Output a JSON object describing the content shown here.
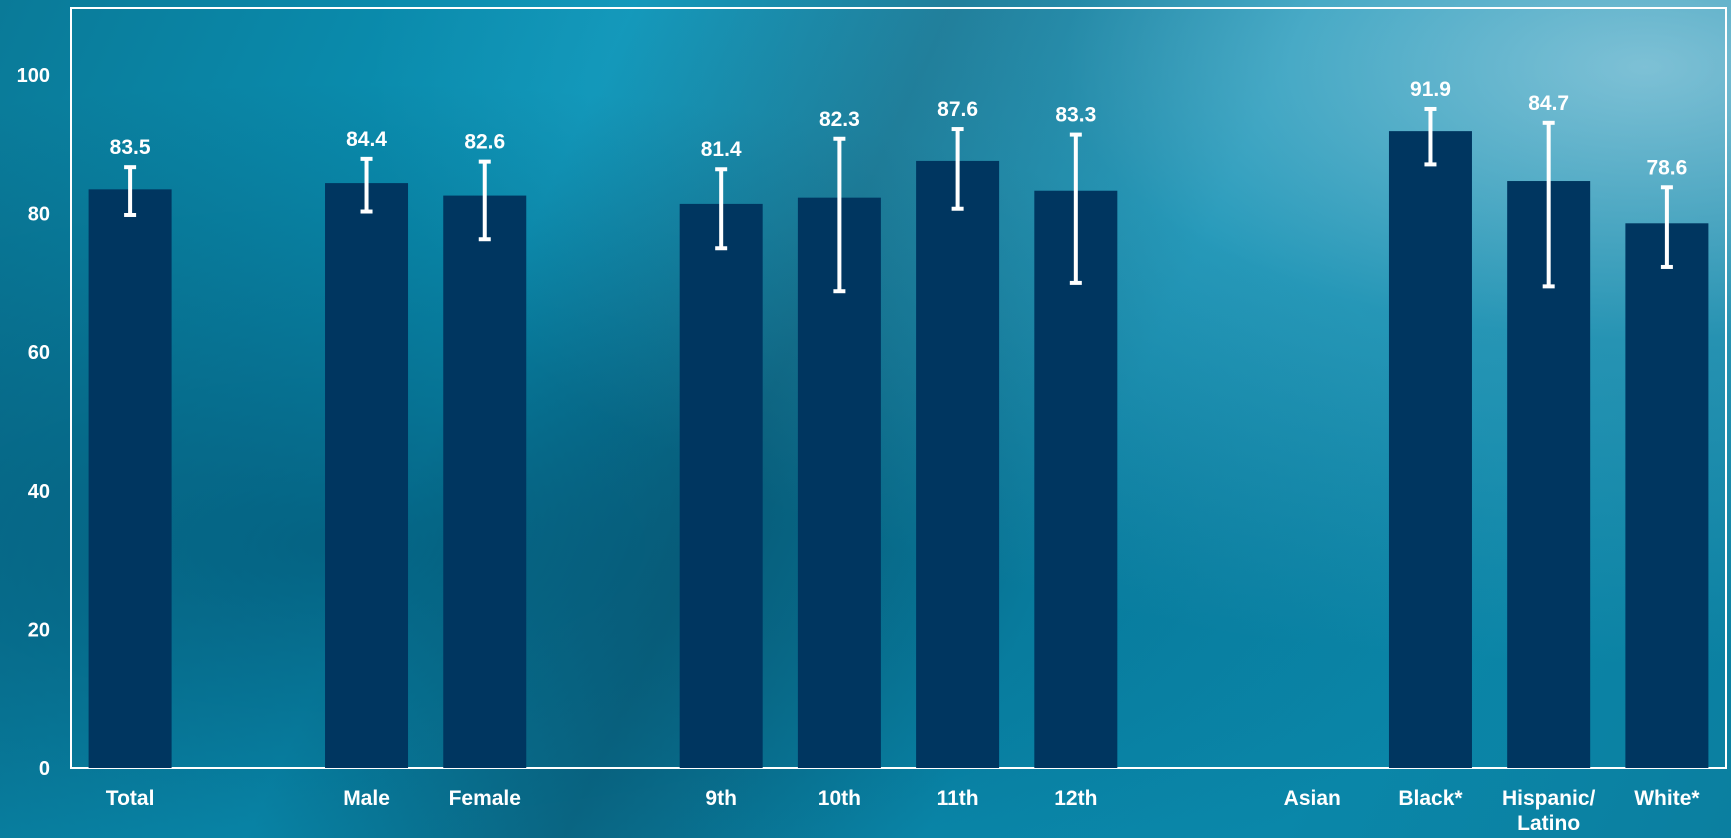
{
  "chart_data": {
    "type": "bar",
    "categories": [
      "Total",
      "Male",
      "Female",
      "9th",
      "10th",
      "11th",
      "12th",
      "Asian",
      "Black*",
      "Hispanic/\nLatino",
      "White*"
    ],
    "values": [
      83.5,
      84.4,
      82.6,
      81.4,
      82.3,
      87.6,
      83.3,
      null,
      91.9,
      84.7,
      78.6
    ],
    "value_labels": [
      "83.5",
      "84.4",
      "82.6",
      "81.4",
      "82.3",
      "87.6",
      "83.3",
      "",
      "91.9",
      "84.7",
      "78.6"
    ],
    "error_low": [
      79.8,
      80.3,
      76.3,
      75.0,
      68.8,
      80.7,
      70.0,
      null,
      87.1,
      69.5,
      72.3
    ],
    "error_high": [
      86.7,
      87.9,
      87.5,
      86.4,
      90.8,
      92.2,
      91.4,
      null,
      95.1,
      93.1,
      83.8
    ],
    "ylim": [
      0,
      100
    ],
    "yticks": [
      0,
      20,
      40,
      60,
      80,
      100
    ],
    "xlabel": "",
    "ylabel": "",
    "grid": false,
    "bar_color": "#003660",
    "errorbar_color": "#ffffff",
    "text_color": "#ffffff"
  }
}
